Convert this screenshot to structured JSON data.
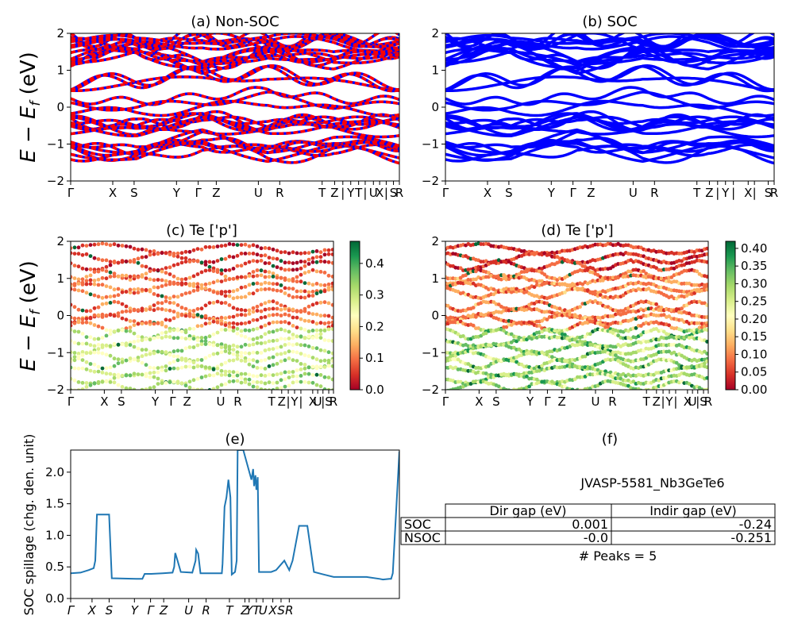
{
  "palette": {
    "nonsoc_up": "#ff0000",
    "nonsoc_dn": "#0000ff",
    "soc": "#0000ff",
    "spillage": "#1f77b4",
    "cmap": [
      "#a50026",
      "#d73027",
      "#f46d43",
      "#fdae61",
      "#fee08b",
      "#ffffbf",
      "#d9ef8b",
      "#a6d96a",
      "#66bd63",
      "#1a9850",
      "#006837"
    ]
  },
  "ylabel_main": "E − E",
  "ylabel_sub": "f",
  "ylabel_unit": " (eV)",
  "chart_data": [
    {
      "id": "a",
      "type": "line",
      "title": "(a) Non-SOC",
      "ylim": [
        -2,
        2
      ],
      "yticks": [
        -2,
        -1,
        0,
        1,
        2
      ],
      "kpoints": [
        "Γ",
        "X",
        "S",
        "Y",
        "Γ",
        "Z",
        "U",
        "R",
        "T",
        "Z",
        "|",
        "Y",
        "T",
        "|",
        "U",
        "X",
        "|",
        "S",
        "R"
      ],
      "kpos": [
        0,
        0.128,
        0.193,
        0.322,
        0.388,
        0.443,
        0.571,
        0.636,
        0.765,
        0.803,
        0.828,
        0.852,
        0.876,
        0.896,
        0.921,
        0.94,
        0.96,
        0.982,
        1.0
      ],
      "series": [
        {
          "values": [
            0.62,
            0.7,
            0.88,
            0.9,
            0.72,
            0.62
          ]
        },
        {
          "values": [
            0.05,
            -0.02,
            0.12,
            0.3,
            0.05,
            0.02
          ]
        },
        {
          "values": [
            -0.45,
            -0.6,
            -0.35,
            -0.55,
            -0.42,
            -0.5
          ]
        },
        {
          "values": [
            1.3,
            1.6,
            1.1,
            1.5,
            1.25,
            1.55
          ]
        },
        {
          "values": [
            -1.1,
            -1.3,
            -0.9,
            -1.25,
            -1.05,
            -1.2
          ]
        },
        {
          "values": [
            1.8,
            1.65,
            1.9,
            1.7,
            1.85,
            1.75
          ]
        }
      ]
    },
    {
      "id": "b",
      "type": "line",
      "title": "(b) SOC",
      "ylim": [
        -2,
        2
      ],
      "yticks": [
        -2,
        -1,
        0,
        1,
        2
      ],
      "kpoints": [
        "Γ",
        "X",
        "S",
        "Y",
        "Γ",
        "Z",
        "U",
        "R",
        "T",
        "Z",
        "|",
        "Y",
        "|",
        "X",
        "|",
        "S",
        "R"
      ],
      "kpos": [
        0,
        0.128,
        0.193,
        0.322,
        0.388,
        0.443,
        0.571,
        0.636,
        0.765,
        0.803,
        0.828,
        0.852,
        0.876,
        0.921,
        0.94,
        0.982,
        1.0
      ],
      "series": [
        {
          "values": [
            0.62,
            0.7,
            0.88,
            0.9,
            0.72,
            0.62
          ]
        },
        {
          "values": [
            0.05,
            -0.02,
            0.12,
            0.3,
            0.05,
            0.02
          ]
        },
        {
          "values": [
            -0.45,
            -0.6,
            -0.35,
            -0.55,
            -0.42,
            -0.5
          ]
        },
        {
          "values": [
            1.3,
            1.6,
            1.1,
            1.5,
            1.25,
            1.55
          ]
        },
        {
          "values": [
            -1.1,
            -1.3,
            -0.9,
            -1.25,
            -1.05,
            -1.2
          ]
        },
        {
          "values": [
            1.8,
            1.65,
            1.9,
            1.7,
            1.85,
            1.75
          ]
        }
      ]
    },
    {
      "id": "c",
      "type": "scatter",
      "title": "(c)  Te ['p']",
      "ylim": [
        -2,
        2
      ],
      "yticks": [
        -2,
        -1,
        0,
        1,
        2
      ],
      "colorbar": {
        "ticks": [
          0.0,
          0.1,
          0.2,
          0.3,
          0.4
        ],
        "labels": [
          "0.0",
          "0.1",
          "0.2",
          "0.3",
          "0.4"
        ],
        "range": [
          0,
          0.47
        ]
      },
      "kpoints": [
        "Γ",
        "X",
        "S",
        "Y",
        "Γ",
        "Z",
        "U",
        "R",
        "T",
        "Z",
        "|",
        "Y",
        "|",
        "X",
        "U",
        "|",
        "S",
        "R"
      ],
      "kpos": [
        0,
        0.128,
        0.193,
        0.322,
        0.388,
        0.443,
        0.571,
        0.636,
        0.765,
        0.803,
        0.828,
        0.852,
        0.876,
        0.921,
        0.94,
        0.96,
        0.982,
        1.0
      ]
    },
    {
      "id": "d",
      "type": "scatter",
      "title": "(d) Te ['p']",
      "ylim": [
        -2,
        2
      ],
      "yticks": [
        -2,
        -1,
        0,
        1,
        2
      ],
      "colorbar": {
        "ticks": [
          0.0,
          0.05,
          0.1,
          0.15,
          0.2,
          0.25,
          0.3,
          0.35,
          0.4
        ],
        "labels": [
          "0.00",
          "0.05",
          "0.10",
          "0.15",
          "0.20",
          "0.25",
          "0.30",
          "0.35",
          "0.40"
        ],
        "range": [
          0,
          0.42
        ]
      },
      "kpoints": [
        "Γ",
        "X",
        "S",
        "Y",
        "Γ",
        "Z",
        "U",
        "R",
        "T",
        "Z",
        "|",
        "Y",
        "|",
        "X",
        "U",
        "|",
        "S",
        "R"
      ],
      "kpos": [
        0,
        0.128,
        0.193,
        0.322,
        0.388,
        0.443,
        0.571,
        0.636,
        0.765,
        0.803,
        0.828,
        0.852,
        0.876,
        0.921,
        0.94,
        0.96,
        0.982,
        1.0
      ]
    },
    {
      "id": "e",
      "type": "line",
      "title": "(e)",
      "ylabel": "SOC spillage (chg. den. unit)",
      "ylim": [
        0,
        2.35
      ],
      "yticks": [
        0.0,
        0.5,
        1.0,
        1.5,
        2.0
      ],
      "ytick_labels": [
        "0.0",
        "0.5",
        "1.0",
        "1.5",
        "2.0"
      ],
      "kpoints": [
        "Γ",
        "X",
        "S",
        "Y",
        "Γ",
        "Z",
        "U",
        "R",
        "T",
        "Z",
        "Y",
        "T",
        "U",
        "X",
        "S",
        "R"
      ],
      "kpos": [
        0,
        0.065,
        0.117,
        0.194,
        0.243,
        0.283,
        0.359,
        0.412,
        0.483,
        0.53,
        0.543,
        0.565,
        0.585,
        0.615,
        0.64,
        0.665
      ],
      "series": [
        {
          "x": [
            0,
            0.03,
            0.055,
            0.07,
            0.075,
            0.08,
            0.1,
            0.113,
            0.117,
            0.125,
            0.2,
            0.218,
            0.225,
            0.245,
            0.28,
            0.31,
            0.315,
            0.318,
            0.325,
            0.335,
            0.37,
            0.38,
            0.382,
            0.388,
            0.395,
            0.46,
            0.462,
            0.468,
            0.474,
            0.48,
            0.486,
            0.49,
            0.5,
            0.505,
            0.508,
            0.525,
            0.55,
            0.555,
            0.558,
            0.562,
            0.565,
            0.569,
            0.573,
            0.6,
            0.61,
            0.625,
            0.65,
            0.66,
            0.665,
            0.675,
            0.695,
            0.7,
            0.72,
            0.74,
            0.77,
            0.8,
            0.85,
            0.9,
            0.94,
            0.95,
            0.97,
            0.975,
            0.98,
            1.0
          ],
          "y": [
            0.4,
            0.41,
            0.45,
            0.48,
            0.6,
            1.33,
            1.33,
            1.33,
            1.33,
            0.32,
            0.31,
            0.31,
            0.39,
            0.39,
            0.4,
            0.41,
            0.5,
            0.72,
            0.6,
            0.42,
            0.41,
            0.6,
            0.77,
            0.71,
            0.4,
            0.4,
            0.55,
            1.45,
            1.6,
            1.88,
            1.6,
            0.38,
            0.42,
            0.6,
            2.35,
            2.35,
            1.88,
            2.05,
            1.78,
            1.95,
            1.72,
            1.92,
            0.42,
            0.42,
            0.42,
            0.45,
            0.6,
            0.5,
            0.45,
            0.6,
            1.15,
            1.15,
            1.15,
            0.42,
            0.38,
            0.34,
            0.34,
            0.34,
            0.31,
            0.3,
            0.31,
            0.31,
            0.4,
            2.33
          ]
        }
      ]
    }
  ],
  "table": {
    "title": "(f)",
    "system": "JVASP-5581_Nb3GeTe6",
    "headers": [
      "Dir gap (eV)",
      "Indir gap (eV)"
    ],
    "rows": [
      {
        "label": "SOC",
        "dir": "0.001",
        "indir": "-0.24"
      },
      {
        "label": "NSOC",
        "dir": "-0.0",
        "indir": "-0.251"
      }
    ],
    "peaks": "# Peaks = 5"
  }
}
